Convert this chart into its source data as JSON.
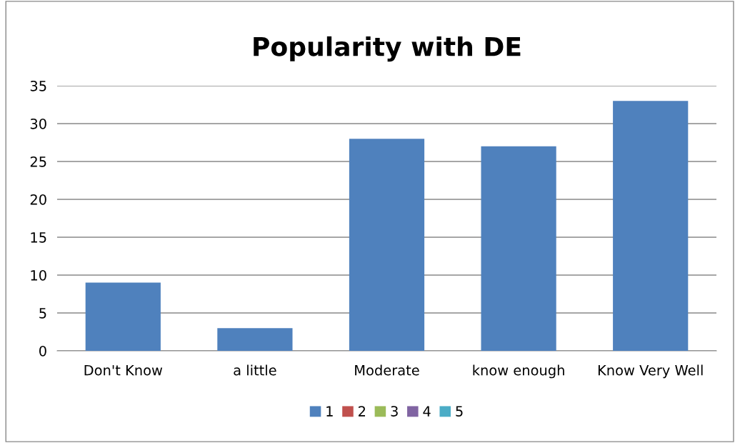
{
  "chart_data": {
    "type": "bar",
    "title": "Popularity with DE",
    "categories": [
      "Don't Know",
      "a little",
      "Moderate",
      "know enough",
      "Know Very Well"
    ],
    "series": [
      {
        "name": "1",
        "color": "#4f81bd",
        "values": [
          9,
          3,
          28,
          27,
          33
        ]
      },
      {
        "name": "2",
        "color": "#c0504d",
        "values": [
          null,
          null,
          null,
          null,
          null
        ]
      },
      {
        "name": "3",
        "color": "#9bbb59",
        "values": [
          null,
          null,
          null,
          null,
          null
        ]
      },
      {
        "name": "4",
        "color": "#8064a2",
        "values": [
          null,
          null,
          null,
          null,
          null
        ]
      },
      {
        "name": "5",
        "color": "#4bacc6",
        "values": [
          null,
          null,
          null,
          null,
          null
        ]
      }
    ],
    "ylim": [
      0,
      35
    ],
    "yticks": [
      0,
      5,
      10,
      15,
      20,
      25,
      30,
      35
    ],
    "grid": "y",
    "legend": "bottom"
  }
}
